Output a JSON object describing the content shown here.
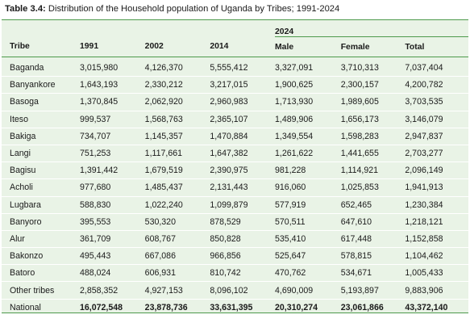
{
  "caption": {
    "prefix": "Table 3.4:",
    "text": " Distribution of the Household population of Uganda by Tribes; 1991-2024"
  },
  "table": {
    "group_header": "2024",
    "headers": [
      "Tribe",
      "1991",
      "2002",
      "2014",
      "Male",
      "Female",
      "Total"
    ],
    "rows": [
      [
        "Baganda",
        "3,015,980",
        "4,126,370",
        "5,555,412",
        "3,327,091",
        "3,710,313",
        "7,037,404"
      ],
      [
        "Banyankore",
        "1,643,193",
        "2,330,212",
        "3,217,015",
        "1,900,625",
        "2,300,157",
        "4,200,782"
      ],
      [
        "Basoga",
        "1,370,845",
        "2,062,920",
        "2,960,983",
        "1,713,930",
        "1,989,605",
        "3,703,535"
      ],
      [
        "Iteso",
        "999,537",
        "1,568,763",
        "2,365,107",
        "1,489,906",
        "1,656,173",
        "3,146,079"
      ],
      [
        "Bakiga",
        "734,707",
        "1,145,357",
        "1,470,884",
        "1,349,554",
        "1,598,283",
        "2,947,837"
      ],
      [
        "Langi",
        "751,253",
        "1,117,661",
        "1,647,382",
        "1,261,622",
        "1,441,655",
        "2,703,277"
      ],
      [
        "Bagisu",
        "1,391,442",
        "1,679,519",
        "2,390,975",
        "981,228",
        "1,114,921",
        "2,096,149"
      ],
      [
        "Acholi",
        "977,680",
        "1,485,437",
        "2,131,443",
        "916,060",
        "1,025,853",
        "1,941,913"
      ],
      [
        "Lugbara",
        "588,830",
        "1,022,240",
        "1,099,879",
        "577,919",
        "652,465",
        "1,230,384"
      ],
      [
        "Banyoro",
        "395,553",
        "530,320",
        "878,529",
        "570,511",
        "647,610",
        "1,218,121"
      ],
      [
        "Alur",
        "361,709",
        "608,767",
        "850,828",
        "535,410",
        "617,448",
        "1,152,858"
      ],
      [
        "Bakonzo",
        "495,443",
        "667,086",
        "966,856",
        "525,647",
        "578,815",
        "1,104,462"
      ],
      [
        "Batoro",
        "488,024",
        "606,931",
        "810,742",
        "470,762",
        "534,671",
        "1,005,433"
      ],
      [
        "Other tribes",
        "2,858,352",
        "4,927,153",
        "8,096,102",
        "4,690,009",
        "5,193,897",
        "9,883,906"
      ],
      [
        "National",
        "16,072,548",
        "23,878,736",
        "33,631,395",
        "20,310,274",
        "23,061,866",
        "43,372,140"
      ]
    ]
  }
}
